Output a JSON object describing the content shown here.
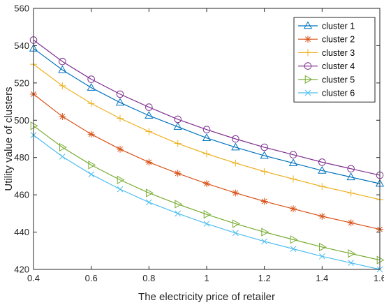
{
  "chart_data": {
    "type": "line",
    "title": "",
    "xlabel": "The electricity price of retailer",
    "ylabel": "Utility value of clusters",
    "xlim": [
      0.4,
      1.6
    ],
    "ylim": [
      420,
      560
    ],
    "xticks": [
      0.4,
      0.6,
      0.8,
      1,
      1.2,
      1.4,
      1.6
    ],
    "xtick_labels": [
      "0.4",
      "0.6",
      "0.8",
      "1",
      "1.2",
      "1.4",
      "1.6"
    ],
    "yticks": [
      420,
      440,
      460,
      480,
      500,
      520,
      540,
      560
    ],
    "ytick_labels": [
      "420",
      "440",
      "460",
      "480",
      "500",
      "520",
      "540",
      "560"
    ],
    "grid": false,
    "legend": "top-right",
    "x": [
      0.4,
      0.5,
      0.6,
      0.7,
      0.8,
      0.9,
      1.0,
      1.1,
      1.2,
      1.3,
      1.4,
      1.5,
      1.6
    ],
    "series": [
      {
        "name": "cluster 1",
        "color": "#0072BD",
        "marker": "triangle-up",
        "values": [
          538.5,
          527,
          517.5,
          509.5,
          502.5,
          496.5,
          490.5,
          485.5,
          481,
          477,
          473,
          469.5,
          466
        ]
      },
      {
        "name": "cluster 2",
        "color": "#D95319",
        "marker": "asterisk",
        "values": [
          514,
          502,
          492.5,
          484.5,
          477.5,
          471.5,
          466,
          461,
          456.5,
          452.5,
          448.5,
          445,
          441.5
        ]
      },
      {
        "name": "cluster 3",
        "color": "#EDB120",
        "marker": "plus",
        "values": [
          530,
          518.5,
          509,
          501,
          494,
          487.5,
          482,
          477,
          472.5,
          468.5,
          464.5,
          461,
          457.5
        ]
      },
      {
        "name": "cluster 4",
        "color": "#7E2F8E",
        "marker": "circle",
        "values": [
          543,
          531.5,
          522,
          514,
          507,
          500.5,
          495,
          490,
          485.5,
          481.5,
          477.5,
          474,
          470.5
        ]
      },
      {
        "name": "cluster 5",
        "color": "#77AC30",
        "marker": "triangle-right",
        "values": [
          497,
          485.5,
          476,
          468,
          461,
          455,
          449.5,
          444.5,
          440,
          436,
          432,
          428.5,
          425
        ]
      },
      {
        "name": "cluster 6",
        "color": "#4DBEEE",
        "marker": "x",
        "values": [
          492,
          480.5,
          471,
          463,
          456,
          450,
          444.5,
          439.5,
          435,
          431,
          427,
          423.5,
          420
        ]
      }
    ]
  }
}
